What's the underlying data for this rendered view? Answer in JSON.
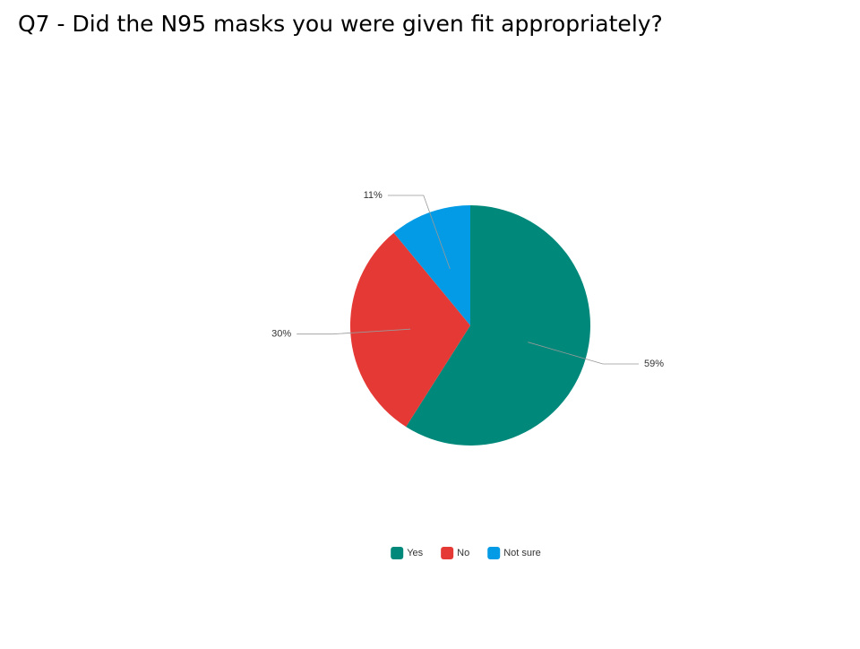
{
  "chart_data": {
    "type": "pie",
    "title": "Q7 - Did the N95 masks you were given fit appropriately?",
    "categories": [
      "Yes",
      "No",
      "Not sure"
    ],
    "values": [
      59,
      30,
      11
    ],
    "value_labels": [
      "59%",
      "30%",
      "11%"
    ],
    "colors": [
      "#00897b",
      "#e53935",
      "#039be5"
    ],
    "legend": "bottom"
  }
}
